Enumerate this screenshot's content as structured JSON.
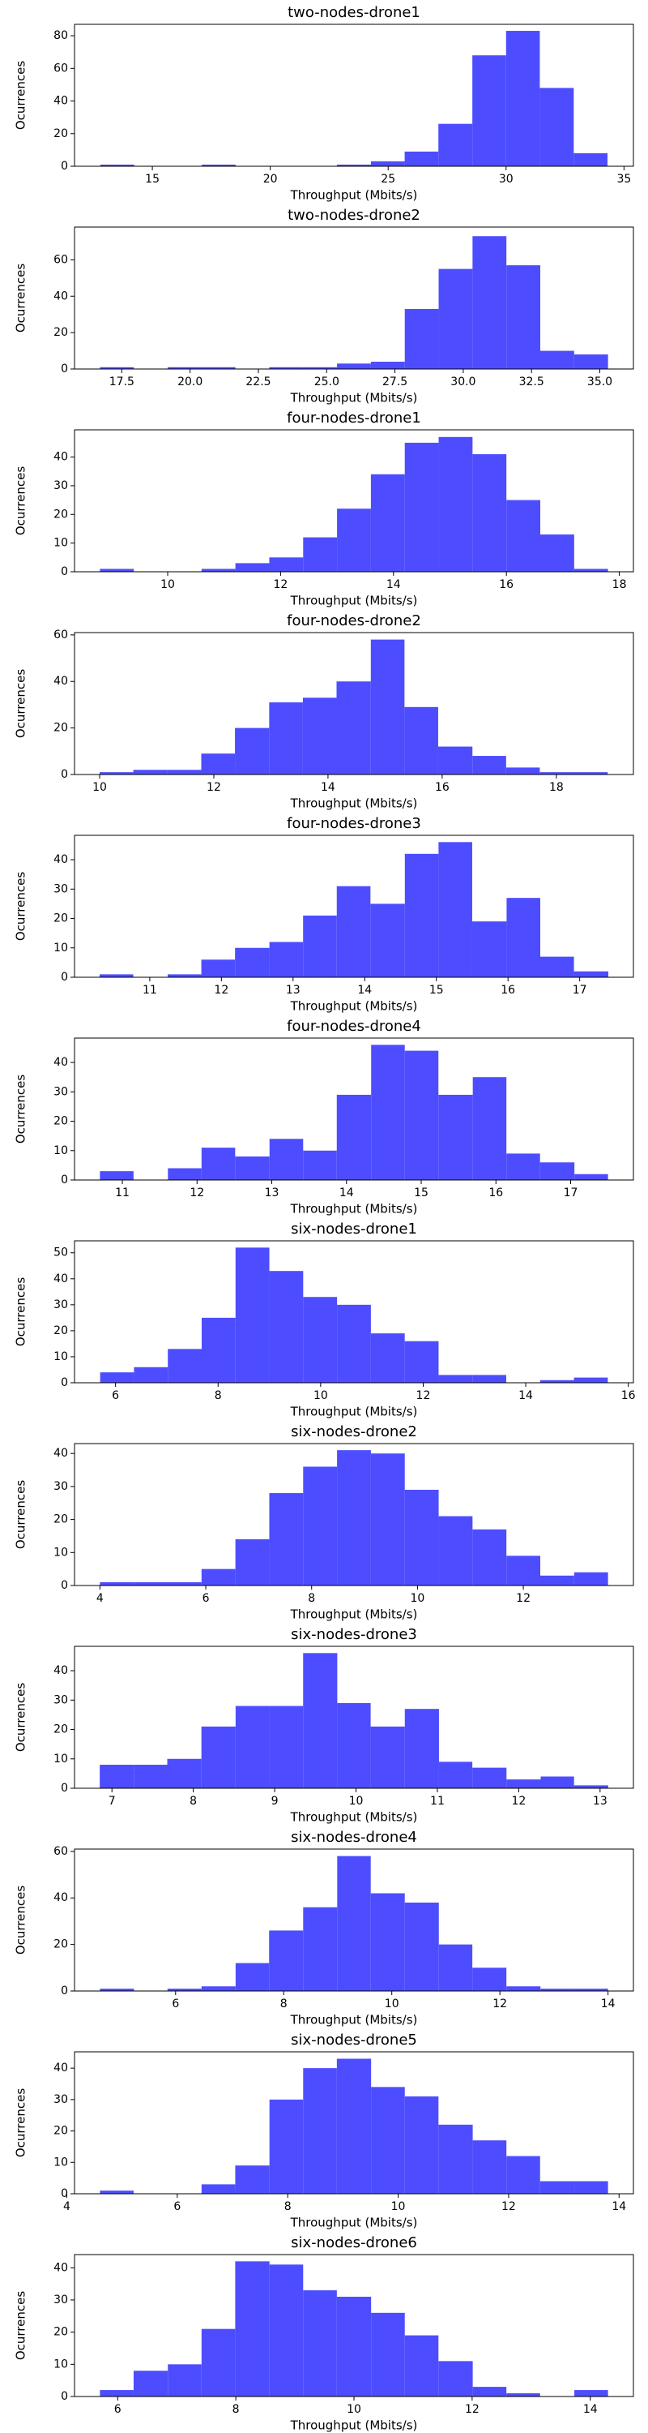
{
  "chart_data": [
    {
      "type": "histogram",
      "title": "two-nodes-drone1",
      "xlabel": "Throughput (Mbits/s)",
      "ylabel": "Ocurrences",
      "color": "#4d4dff",
      "bins": [
        12.8,
        14.23,
        15.67,
        17.1,
        18.53,
        19.97,
        21.4,
        22.83,
        24.27,
        25.7,
        27.13,
        28.57,
        30.0,
        31.43,
        32.87,
        34.3
      ],
      "counts": [
        1,
        0,
        0,
        1,
        0,
        0,
        0,
        1,
        3,
        9,
        26,
        68,
        83,
        48,
        8
      ],
      "xlim": [
        11.7,
        35.4
      ],
      "xticks": [
        15,
        20,
        25,
        30,
        35
      ],
      "ylim": [
        0,
        87
      ],
      "yticks": [
        0,
        20,
        40,
        60,
        80
      ]
    },
    {
      "type": "histogram",
      "title": "two-nodes-drone2",
      "xlabel": "Throughput (Mbits/s)",
      "ylabel": "Ocurrences",
      "color": "#4d4dff",
      "bins": [
        16.7,
        17.94,
        19.18,
        20.42,
        21.66,
        22.9,
        24.14,
        25.38,
        26.62,
        27.86,
        29.1,
        30.34,
        31.58,
        32.82,
        34.06,
        35.3
      ],
      "counts": [
        1,
        0,
        1,
        1,
        0,
        1,
        1,
        3,
        4,
        33,
        55,
        73,
        57,
        10,
        8
      ],
      "xlim": [
        15.77,
        36.23
      ],
      "xticks": [
        17.5,
        {
          "value": 20,
          "label": "20.0"
        },
        22.5,
        {
          "value": 25,
          "label": "25.0"
        },
        27.5,
        {
          "value": 30,
          "label": "30.0"
        },
        32.5,
        {
          "value": 35,
          "label": "35.0"
        }
      ],
      "ylim": [
        0,
        78
      ],
      "yticks": [
        0,
        20,
        40,
        60
      ]
    },
    {
      "type": "histogram",
      "title": "four-nodes-drone1",
      "xlabel": "Throughput (Mbits/s)",
      "ylabel": "Ocurrences",
      "color": "#4d4dff",
      "bins": [
        8.8,
        9.4,
        10.0,
        10.6,
        11.2,
        11.8,
        12.4,
        13.0,
        13.6,
        14.2,
        14.8,
        15.4,
        16.0,
        16.6,
        17.2,
        17.8
      ],
      "counts": [
        1,
        0,
        0,
        1,
        3,
        5,
        12,
        22,
        34,
        45,
        47,
        41,
        25,
        13,
        1
      ],
      "xlim": [
        8.35,
        18.25
      ],
      "xticks": [
        10,
        12,
        14,
        16,
        18
      ],
      "ylim": [
        0,
        49.5
      ],
      "yticks": [
        0,
        10,
        20,
        30,
        40
      ]
    },
    {
      "type": "histogram",
      "title": "four-nodes-drone2",
      "xlabel": "Throughput (Mbits/s)",
      "ylabel": "Ocurrences",
      "color": "#4d4dff",
      "bins": [
        10.0,
        10.59,
        11.19,
        11.78,
        12.37,
        12.97,
        13.56,
        14.15,
        14.75,
        15.34,
        15.93,
        16.53,
        17.12,
        17.71,
        18.31,
        18.9
      ],
      "counts": [
        1,
        2,
        2,
        9,
        20,
        31,
        33,
        40,
        58,
        29,
        12,
        8,
        3,
        1,
        1
      ],
      "xlim": [
        9.56,
        19.35
      ],
      "xticks": [
        10,
        12,
        14,
        16,
        18
      ],
      "ylim": [
        0,
        61
      ],
      "yticks": [
        0,
        20,
        40,
        60
      ]
    },
    {
      "type": "histogram",
      "title": "four-nodes-drone3",
      "xlabel": "Throughput (Mbits/s)",
      "ylabel": "Ocurrences",
      "color": "#4d4dff",
      "bins": [
        10.3,
        10.77,
        11.25,
        11.72,
        12.19,
        12.67,
        13.14,
        13.61,
        14.08,
        14.56,
        15.03,
        15.5,
        15.98,
        16.45,
        16.92,
        17.4
      ],
      "counts": [
        1,
        0,
        1,
        6,
        10,
        12,
        21,
        31,
        25,
        42,
        46,
        19,
        27,
        7,
        2
      ],
      "xlim": [
        9.95,
        17.75
      ],
      "xticks": [
        11,
        12,
        13,
        14,
        15,
        16,
        17
      ],
      "ylim": [
        0,
        48.3
      ],
      "yticks": [
        0,
        10,
        20,
        30,
        40
      ]
    },
    {
      "type": "histogram",
      "title": "four-nodes-drone4",
      "xlabel": "Throughput (Mbits/s)",
      "ylabel": "Ocurrences",
      "color": "#4d4dff",
      "bins": [
        10.7,
        11.15,
        11.61,
        12.06,
        12.51,
        12.97,
        13.42,
        13.87,
        14.33,
        14.78,
        15.23,
        15.69,
        16.14,
        16.59,
        17.05,
        17.5
      ],
      "counts": [
        3,
        0,
        4,
        11,
        8,
        14,
        10,
        29,
        46,
        44,
        29,
        35,
        9,
        6,
        2
      ],
      "xlim": [
        10.36,
        17.84
      ],
      "xticks": [
        11,
        12,
        13,
        14,
        15,
        16,
        17
      ],
      "ylim": [
        0,
        48.3
      ],
      "yticks": [
        0,
        10,
        20,
        30,
        40
      ]
    },
    {
      "type": "histogram",
      "title": "six-nodes-drone1",
      "xlabel": "Throughput (Mbits/s)",
      "ylabel": "Ocurrences",
      "color": "#4d4dff",
      "bins": [
        5.7,
        6.36,
        7.02,
        7.68,
        8.34,
        9.0,
        9.66,
        10.32,
        10.98,
        11.64,
        12.3,
        12.96,
        13.62,
        14.28,
        14.94,
        15.6
      ],
      "counts": [
        4,
        6,
        13,
        25,
        52,
        43,
        33,
        30,
        19,
        16,
        3,
        3,
        0,
        1,
        2
      ],
      "xlim": [
        5.2,
        16.1
      ],
      "xticks": [
        6,
        8,
        10,
        12,
        14,
        16
      ],
      "ylim": [
        0,
        54.6
      ],
      "yticks": [
        0,
        10,
        20,
        30,
        40,
        50
      ]
    },
    {
      "type": "histogram",
      "title": "six-nodes-drone2",
      "xlabel": "Throughput (Mbits/s)",
      "ylabel": "Ocurrences",
      "color": "#4d4dff",
      "bins": [
        4.0,
        4.64,
        5.28,
        5.92,
        6.56,
        7.2,
        7.84,
        8.48,
        9.12,
        9.76,
        10.4,
        11.04,
        11.68,
        12.32,
        12.96,
        13.6
      ],
      "counts": [
        1,
        1,
        1,
        5,
        14,
        28,
        36,
        41,
        40,
        29,
        21,
        17,
        9,
        3,
        4
      ],
      "xlim": [
        3.52,
        14.08
      ],
      "xticks": [
        4,
        6,
        8,
        10,
        12
      ],
      "ylim": [
        0,
        43
      ],
      "yticks": [
        0,
        10,
        20,
        30,
        40
      ]
    },
    {
      "type": "histogram",
      "title": "six-nodes-drone3",
      "xlabel": "Throughput (Mbits/s)",
      "ylabel": "Ocurrences",
      "color": "#4d4dff",
      "bins": [
        6.85,
        7.27,
        7.68,
        8.1,
        8.52,
        8.93,
        9.35,
        9.77,
        10.18,
        10.6,
        11.02,
        11.43,
        11.85,
        12.27,
        12.68,
        13.1
      ],
      "counts": [
        8,
        8,
        10,
        21,
        28,
        28,
        46,
        29,
        21,
        27,
        9,
        7,
        3,
        4,
        1
      ],
      "xlim": [
        6.54,
        13.41
      ],
      "xticks": [
        7,
        8,
        9,
        10,
        11,
        12,
        13
      ],
      "ylim": [
        0,
        48.3
      ],
      "yticks": [
        0,
        10,
        20,
        30,
        40
      ]
    },
    {
      "type": "histogram",
      "title": "six-nodes-drone4",
      "xlabel": "Throughput (Mbits/s)",
      "ylabel": "Ocurrences",
      "color": "#4d4dff",
      "bins": [
        4.6,
        5.23,
        5.85,
        6.48,
        7.11,
        7.73,
        8.36,
        8.99,
        9.61,
        10.24,
        10.87,
        11.49,
        12.12,
        12.75,
        13.37,
        14.0
      ],
      "counts": [
        1,
        0,
        1,
        2,
        12,
        26,
        36,
        58,
        42,
        38,
        20,
        10,
        2,
        1,
        1
      ],
      "xlim": [
        4.13,
        14.47
      ],
      "xticks": [
        6,
        8,
        10,
        12,
        14
      ],
      "ylim": [
        0,
        61
      ],
      "yticks": [
        0,
        20,
        40,
        60
      ]
    },
    {
      "type": "histogram",
      "title": "six-nodes-drone5",
      "xlabel": "Throughput (Mbits/s)",
      "ylabel": "Ocurrences",
      "color": "#4d4dff",
      "bins": [
        4.6,
        5.21,
        5.83,
        6.44,
        7.05,
        7.67,
        8.28,
        8.89,
        9.51,
        10.12,
        10.73,
        11.35,
        11.96,
        12.57,
        13.19,
        13.8
      ],
      "counts": [
        1,
        0,
        0,
        3,
        9,
        30,
        40,
        43,
        34,
        31,
        22,
        17,
        12,
        4,
        4
      ],
      "xlim": [
        4.14,
        14.26
      ],
      "xticks": [
        4,
        6,
        8,
        10,
        12,
        14
      ],
      "ylim": [
        0,
        45.2
      ],
      "yticks": [
        0,
        10,
        20,
        30,
        40
      ]
    },
    {
      "type": "histogram",
      "title": "six-nodes-drone6",
      "xlabel": "Throughput (Mbits/s)",
      "ylabel": "Ocurrences",
      "color": "#4d4dff",
      "bins": [
        5.7,
        6.27,
        6.85,
        7.42,
        7.99,
        8.57,
        9.14,
        9.71,
        10.29,
        10.86,
        11.43,
        12.01,
        12.58,
        13.15,
        13.73,
        14.3
      ],
      "counts": [
        2,
        8,
        10,
        21,
        42,
        41,
        33,
        31,
        26,
        19,
        11,
        3,
        1,
        0,
        2
      ],
      "xlim": [
        5.27,
        14.73
      ],
      "xticks": [
        6,
        8,
        10,
        12,
        14
      ],
      "ylim": [
        0,
        44.1
      ],
      "yticks": [
        0,
        10,
        20,
        30,
        40
      ]
    }
  ]
}
